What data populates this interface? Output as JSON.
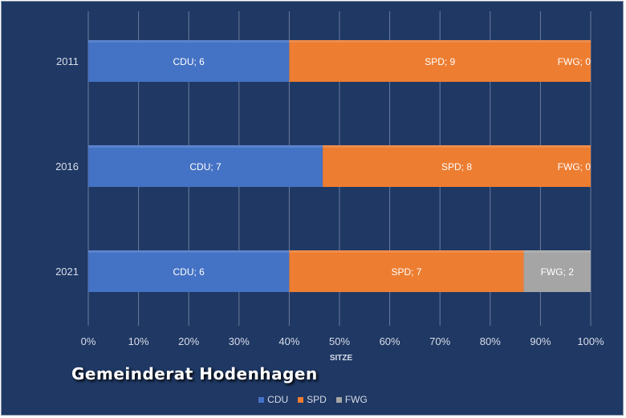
{
  "chart_data": {
    "type": "bar",
    "orientation": "horizontal",
    "stacked": "percent",
    "categories": [
      "2011",
      "2016",
      "2021"
    ],
    "series": [
      {
        "name": "CDU",
        "values": [
          6,
          7,
          6
        ],
        "color": "#4472c4"
      },
      {
        "name": "SPD",
        "values": [
          9,
          8,
          7
        ],
        "color": "#ed7d31"
      },
      {
        "name": "FWG",
        "values": [
          0,
          0,
          2
        ],
        "color": "#a5a5a5"
      }
    ],
    "xticks": [
      "0%",
      "10%",
      "20%",
      "30%",
      "40%",
      "50%",
      "60%",
      "70%",
      "80%",
      "90%",
      "100%"
    ],
    "xlim": [
      0,
      100
    ],
    "xlabel": "SITZE",
    "ylabel": "",
    "title": "Gemeinderat Hodenhagen",
    "grid": true,
    "legend_position": "bottom",
    "data_label_format": "{series}; {value}"
  }
}
